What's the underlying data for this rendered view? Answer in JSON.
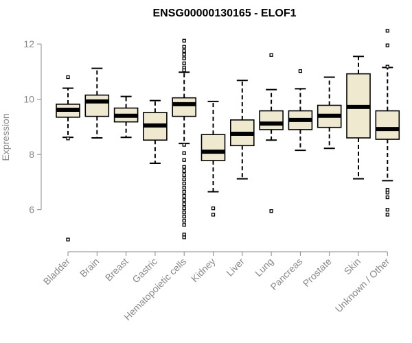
{
  "chart_data": {
    "type": "boxplot",
    "title": "ENSG00000130165 - ELOF1",
    "ylabel": "Expression",
    "xlabel": "",
    "ylim": [
      4.75,
      12.55
    ],
    "yticks": [
      6,
      8,
      10,
      12
    ],
    "box_fill": "#efe9d0",
    "axis_color": "#888888",
    "categories": [
      "Bladder",
      "Brain",
      "Breast",
      "Gastric",
      "Hematopoietic cells",
      "Kidney",
      "Liver",
      "Lung",
      "Pancreas",
      "Prostate",
      "Skin",
      "Unknown / Other"
    ],
    "boxes": [
      {
        "min": 8.62,
        "q1": 9.35,
        "median": 9.62,
        "q3": 9.82,
        "max": 10.4,
        "outliers": [
          10.8,
          8.58,
          4.92
        ]
      },
      {
        "min": 8.6,
        "q1": 9.38,
        "median": 9.92,
        "q3": 10.15,
        "max": 11.12,
        "outliers": []
      },
      {
        "min": 8.62,
        "q1": 9.18,
        "median": 9.4,
        "q3": 9.68,
        "max": 10.1,
        "outliers": []
      },
      {
        "min": 7.68,
        "q1": 8.52,
        "median": 9.05,
        "q3": 9.52,
        "max": 9.95,
        "outliers": []
      },
      {
        "min": 8.4,
        "q1": 9.38,
        "median": 9.82,
        "q3": 10.05,
        "max": 10.98,
        "outliers": [
          12.12,
          11.9,
          11.75,
          11.62,
          11.48,
          11.3,
          11.15,
          11.05,
          8.35,
          8.05,
          7.8,
          7.55,
          7.4,
          7.25,
          7.1,
          6.95,
          6.8,
          6.65,
          6.5,
          6.35,
          6.2,
          6.05,
          5.9,
          5.75,
          5.6,
          5.45,
          5.1,
          5.0
        ]
      },
      {
        "min": 6.65,
        "q1": 7.78,
        "median": 8.1,
        "q3": 8.72,
        "max": 9.92,
        "outliers": [
          6.05,
          5.82
        ]
      },
      {
        "min": 7.12,
        "q1": 8.32,
        "median": 8.75,
        "q3": 9.25,
        "max": 10.68,
        "outliers": []
      },
      {
        "min": 8.52,
        "q1": 8.9,
        "median": 9.12,
        "q3": 9.58,
        "max": 10.35,
        "outliers": [
          11.6,
          5.95
        ]
      },
      {
        "min": 8.15,
        "q1": 8.9,
        "median": 9.25,
        "q3": 9.58,
        "max": 10.38,
        "outliers": [
          11.02
        ]
      },
      {
        "min": 8.22,
        "q1": 8.98,
        "median": 9.4,
        "q3": 9.78,
        "max": 10.8,
        "outliers": []
      },
      {
        "min": 7.12,
        "q1": 8.6,
        "median": 9.72,
        "q3": 10.92,
        "max": 11.55,
        "outliers": []
      },
      {
        "min": 7.05,
        "q1": 8.55,
        "median": 8.92,
        "q3": 9.58,
        "max": 11.15,
        "outliers": [
          12.48,
          11.95,
          11.18,
          6.72,
          6.62,
          6.45,
          6.0,
          5.82
        ]
      }
    ]
  }
}
